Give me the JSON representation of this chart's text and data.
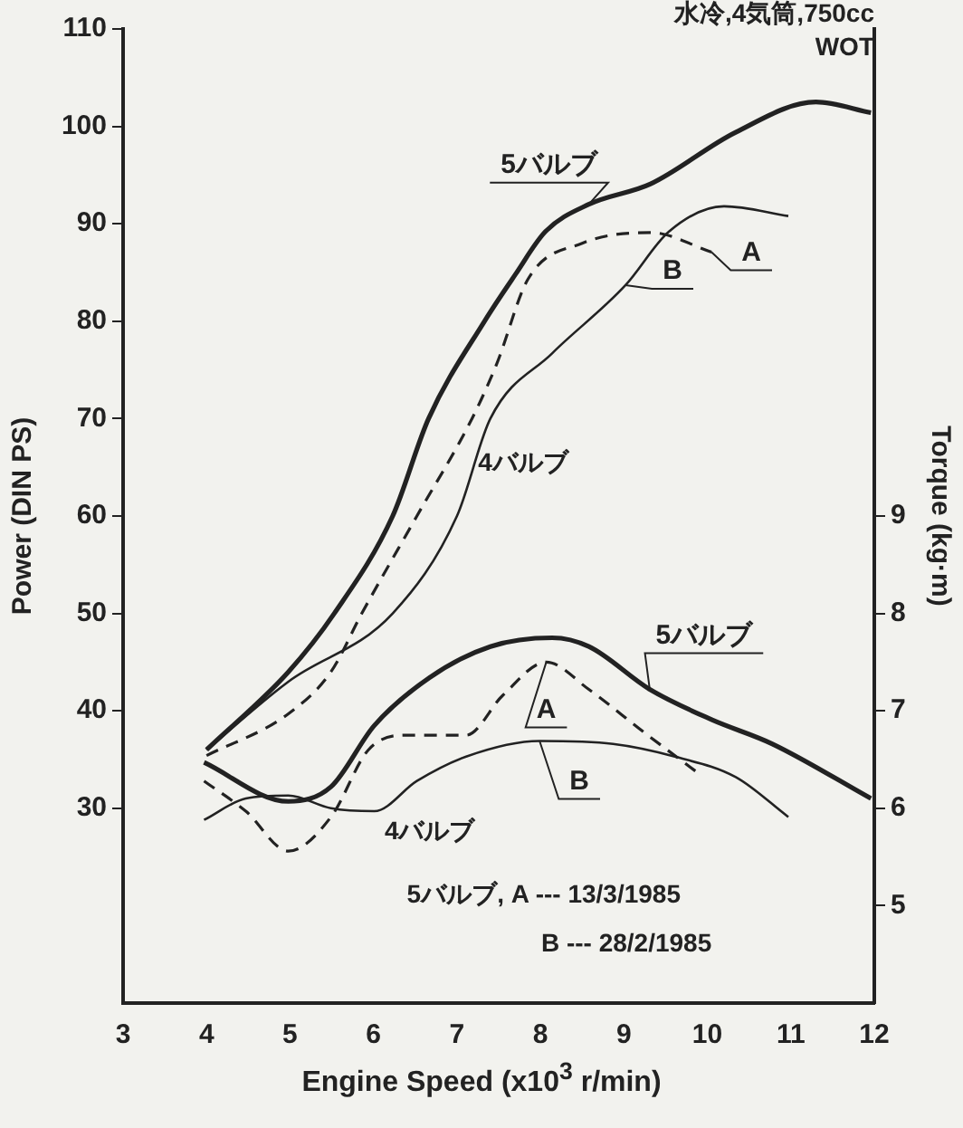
{
  "chart_data": {
    "type": "line",
    "xlabel": "Engine Speed (x10$^{3}$ r/min)",
    "ylabel": "Power (DIN PS)",
    "y2label": "Torque (kg·m)",
    "xlim": [
      3,
      12
    ],
    "xticks": [
      3,
      4,
      5,
      6,
      7,
      8,
      9,
      10,
      11,
      12
    ],
    "ylim": [
      10,
      110
    ],
    "yticks": [
      30,
      40,
      50,
      60,
      70,
      80,
      90,
      100,
      110
    ],
    "y2lim": [
      4,
      14
    ],
    "y2ticks": [
      5,
      6,
      7,
      8,
      9
    ],
    "grid": false,
    "legend": false,
    "marker": "none",
    "annotations": [
      "水冷,4気筒,750cc",
      "WOT",
      {
        "text": "4バルブ",
        "x": 6.95,
        "y": 68
      },
      {
        "text": "4バルブ",
        "x": 7,
        "y": 35
      },
      "5バルブ, A --- 13/3/1985",
      "B --- 28/2/1985"
    ],
    "series": [
      {
        "name": "5バルブ",
        "color": "#222222",
        "line_style": "solid",
        "x": [
          4,
          4.98,
          5.53,
          6.23,
          6.66,
          7.33,
          7.7,
          8.06,
          8.58,
          9.32,
          10.34,
          11.3,
          11.96
        ],
        "values": [
          36,
          44,
          50,
          60,
          70,
          80,
          84.8,
          89.2,
          92,
          94.1,
          99.4,
          102.5,
          101.4
        ]
      },
      {
        "name": "A",
        "color": "#222222",
        "line_style": "dashed",
        "x": [
          4,
          4.98,
          5.49,
          5.86,
          6.52,
          7.18,
          7.48,
          7.85,
          8.5,
          9.32,
          10.05
        ],
        "values": [
          35.4,
          39.7,
          44,
          50,
          60,
          70,
          75.7,
          84.3,
          88,
          89.1,
          87.1
        ]
      },
      {
        "name": "B",
        "color": "#222222",
        "line_style": "solid",
        "x": [
          4,
          4.98,
          6.23,
          7,
          7.4,
          8.14,
          9.02,
          9.54,
          10.2,
          10.97
        ],
        "values": [
          36,
          43,
          50,
          60,
          70,
          76.7,
          83.7,
          89.2,
          91.8,
          90.8
        ]
      },
      {
        "name": "5バルブ",
        "color": "#222222",
        "line_style": "solid",
        "axis": "y2",
        "x": [
          3.97,
          4.98,
          5.49,
          6.01,
          6.67,
          7.4,
          8.14,
          8.58,
          9.31,
          10.05,
          10.78,
          11.96
        ],
        "values": [
          6.47,
          6.07,
          6.22,
          6.85,
          7.34,
          7.66,
          7.75,
          7.66,
          7.22,
          6.91,
          6.66,
          6.1
        ]
      },
      {
        "name": "A",
        "color": "#222222",
        "line_style": "dashed",
        "axis": "y2",
        "x": [
          3.97,
          4.47,
          4.98,
          5.49,
          5.94,
          6.38,
          7.11,
          7.55,
          8.07,
          8.58,
          9.24,
          9.86
        ],
        "values": [
          6.28,
          5.97,
          5.56,
          5.91,
          6.6,
          6.75,
          6.75,
          7.16,
          7.5,
          7.22,
          6.78,
          6.38
        ]
      },
      {
        "name": "B",
        "color": "#222222",
        "line_style": "solid",
        "axis": "y2",
        "x": [
          3.97,
          4.47,
          4.98,
          5.49,
          6.01,
          6.52,
          7.11,
          7.99,
          8.87,
          9.61,
          10.34,
          10.97
        ],
        "values": [
          5.88,
          6.1,
          6.13,
          6,
          5.97,
          6.28,
          6.53,
          6.69,
          6.66,
          6.53,
          6.32,
          5.91
        ]
      }
    ]
  }
}
